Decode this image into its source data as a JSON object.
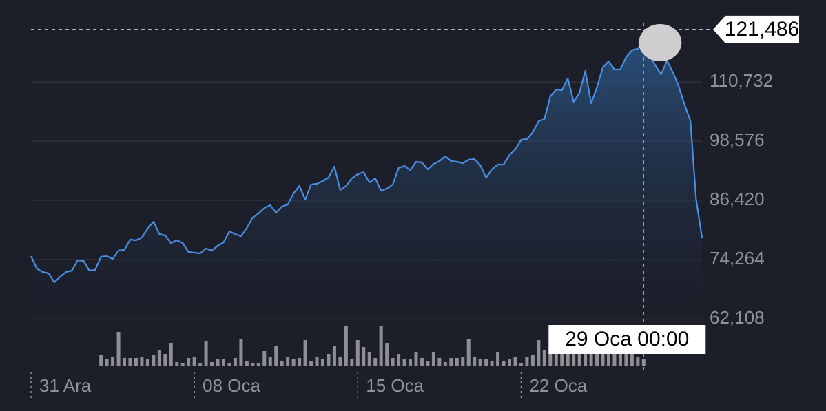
{
  "chart_data": {
    "type": "area",
    "categories": [
      "31 Ara",
      null,
      null,
      null,
      null,
      null,
      null,
      null,
      null,
      null,
      null,
      null,
      null,
      null,
      null,
      null,
      null,
      null,
      null,
      null,
      null,
      null,
      null,
      null,
      null,
      null,
      null,
      null,
      "08 Oca",
      null,
      null,
      null,
      null,
      null,
      null,
      null,
      null,
      null,
      null,
      null,
      null,
      null,
      null,
      null,
      null,
      null,
      null,
      null,
      null,
      null,
      null,
      null,
      null,
      null,
      null,
      null,
      "15 Oca",
      null,
      null,
      null,
      null,
      null,
      null,
      null,
      null,
      null,
      null,
      null,
      null,
      null,
      null,
      null,
      null,
      null,
      null,
      null,
      null,
      null,
      null,
      null,
      null,
      null,
      null,
      null,
      "22 Oca",
      null,
      null,
      null,
      null,
      null,
      null,
      null,
      null,
      null,
      null,
      null,
      null,
      null,
      null,
      null,
      null,
      null,
      null,
      null,
      null,
      "29 Oca 00:00",
      null,
      null,
      null,
      null,
      null,
      null,
      null,
      null,
      null,
      null
    ],
    "series": [
      {
        "color": "#4a90e2",
        "values": [
          74971,
          72427,
          71720,
          71437,
          69600,
          70730,
          71720,
          72003,
          74123,
          73981,
          72003,
          72144,
          74830,
          74971,
          74405,
          76102,
          76243,
          78363,
          78222,
          78787,
          80625,
          82038,
          79494,
          79211,
          77657,
          78222,
          77657,
          75819,
          75678,
          75536,
          76526,
          76102,
          77091,
          77798,
          80059,
          79494,
          79070,
          80766,
          82886,
          83735,
          84865,
          85431,
          83876,
          85148,
          85572,
          87834,
          89389,
          86562,
          89671,
          89813,
          90378,
          91085,
          93346,
          88540,
          89389,
          90943,
          91792,
          92216,
          90095,
          90943,
          88399,
          88823,
          89671,
          93064,
          93488,
          92640,
          94336,
          94194,
          92781,
          93912,
          94477,
          95467,
          94477,
          94336,
          94053,
          94760,
          94901,
          93629,
          91085,
          92781,
          93770,
          93770,
          95749,
          96880,
          98859,
          99000,
          100414,
          102675,
          103100,
          107764,
          109178,
          109036,
          111439,
          106633,
          108471,
          112994,
          106351,
          109602,
          113701,
          114973,
          113277,
          113277,
          115821,
          117235,
          117517,
          119355,
          116245,
          114125,
          112287,
          115114,
          112711,
          109884,
          106068,
          102817,
          86562,
          78787
        ]
      },
      {
        "color": "#8e8e93",
        "values": [
          null,
          null,
          null,
          null,
          null,
          null,
          null,
          null,
          null,
          null,
          null,
          null,
          16,
          10,
          14,
          50,
          12,
          12,
          12,
          14,
          10,
          16,
          24,
          18,
          34,
          6,
          4,
          12,
          14,
          4,
          36,
          6,
          10,
          10,
          4,
          12,
          40,
          8,
          4,
          4,
          22,
          14,
          30,
          8,
          14,
          10,
          12,
          38,
          8,
          14,
          10,
          18,
          30,
          14,
          58,
          10,
          38,
          28,
          20,
          12,
          58,
          34,
          12,
          18,
          10,
          10,
          20,
          12,
          8,
          20,
          12,
          6,
          12,
          12,
          14,
          40,
          14,
          10,
          10,
          8,
          20,
          8,
          10,
          14,
          4,
          14,
          16,
          38,
          24,
          26,
          26,
          24,
          24,
          24,
          24,
          24,
          22,
          26,
          22,
          24,
          26,
          20,
          24,
          28,
          14,
          10,
          null,
          null,
          null,
          null,
          null,
          null,
          null,
          null,
          null,
          null
        ]
      }
    ],
    "ylim": [
      62108,
      122888
    ],
    "yticks": [
      {
        "value": 62108,
        "label": "62,108"
      },
      {
        "value": 74264,
        "label": "74,264"
      },
      {
        "value": 86420,
        "label": "86,420"
      },
      {
        "value": 98576,
        "label": "98,576"
      },
      {
        "value": 110732,
        "label": "110,732"
      }
    ],
    "crosshair": {
      "value": 121486,
      "label": "121,486"
    },
    "grid": true
  }
}
